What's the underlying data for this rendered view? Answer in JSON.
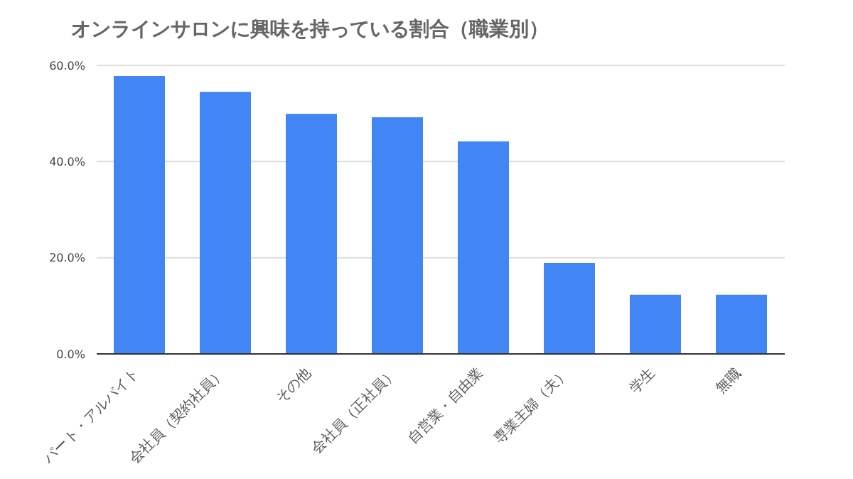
{
  "chart_data": {
    "type": "bar",
    "title": "オンラインサロンに興味を持っている割合（職業別）",
    "categories": [
      "パート・アルバイト",
      "会社員（契約社員）",
      "その他",
      "会社員（正社員）",
      "自営業・自由業",
      "専業主婦（夫）",
      "学生",
      "無職"
    ],
    "values": [
      57.8,
      54.5,
      49.9,
      49.2,
      44.2,
      18.9,
      12.3,
      12.3
    ],
    "color": "#4285f4",
    "ylim": [
      0,
      60
    ],
    "yticks": [
      {
        "value": 0,
        "label": "0.0%"
      },
      {
        "value": 20,
        "label": "20.0%"
      },
      {
        "value": 40,
        "label": "40.0%"
      },
      {
        "value": 60,
        "label": "60.0%"
      }
    ],
    "grid": "y"
  }
}
